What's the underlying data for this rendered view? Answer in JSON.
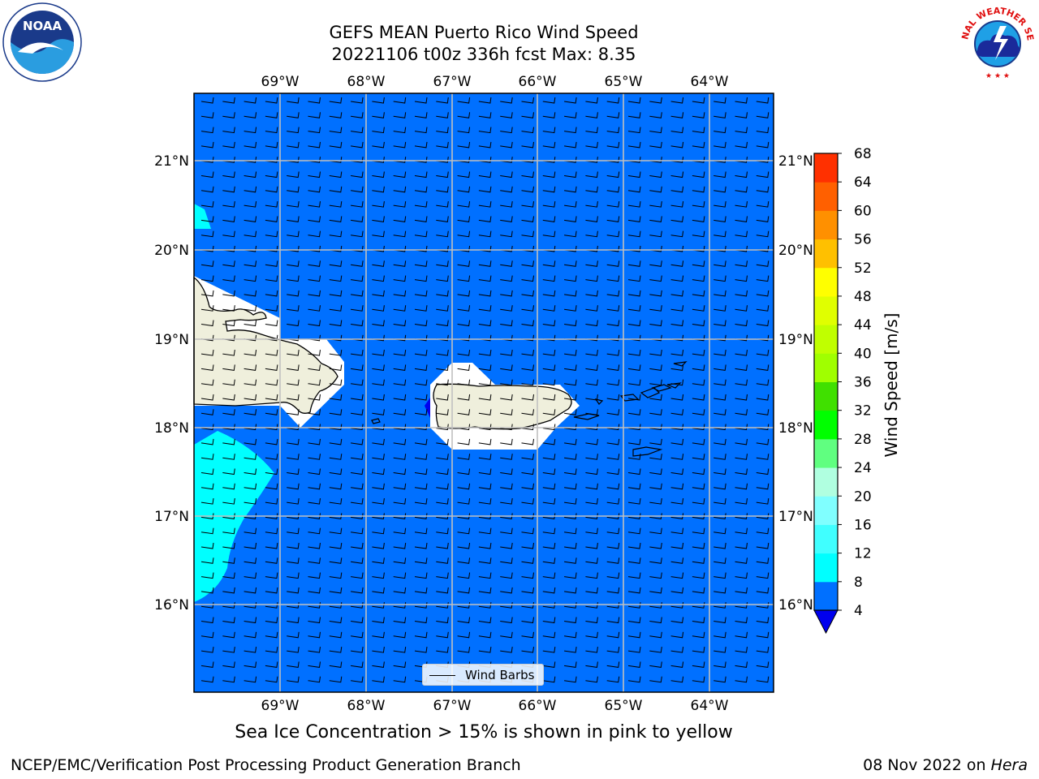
{
  "header": {
    "title_line1": "GEFS MEAN Puerto Rico Wind Speed",
    "title_line2": "20221106 t00z 336h fcst   Max: 8.35"
  },
  "map": {
    "lon_labels": [
      "69°W",
      "68°W",
      "67°W",
      "66°W",
      "65°W",
      "64°W"
    ],
    "lat_labels": [
      "21°N",
      "20°N",
      "19°N",
      "18°N",
      "17°N",
      "16°N"
    ],
    "background_color": "#0070ff",
    "land_color": "#efefdc",
    "wind_barbs_icon": "wind-barb-icon"
  },
  "legend": {
    "wind_barbs_label": "Wind Barbs"
  },
  "colorbar": {
    "label": "Wind Speed [m/s]",
    "ticks": [
      "4",
      "8",
      "12",
      "16",
      "20",
      "24",
      "28",
      "32",
      "36",
      "40",
      "44",
      "48",
      "52",
      "56",
      "60",
      "64",
      "68"
    ],
    "colors": [
      "#0070ff",
      "#00ffff",
      "#40ffff",
      "#80ffff",
      "#b0ffe0",
      "#60ff80",
      "#00ff00",
      "#40e000",
      "#a0ff00",
      "#c0ff00",
      "#e0ff00",
      "#ffff00",
      "#ffc000",
      "#ff9000",
      "#ff6000",
      "#ff3000",
      "#ff0000"
    ],
    "under_color": "#0000ee"
  },
  "caption": "Sea Ice Concentration > 15% is shown in pink to yellow",
  "footer": {
    "left": "NCEP/EMC/Verification Post Processing Product Generation Branch",
    "right_date": "08 Nov 2022 on ",
    "right_host": "Hera"
  },
  "logos": {
    "noaa_text": "NOAA",
    "nws_text": "NATIONAL WEATHER SERVICE"
  }
}
